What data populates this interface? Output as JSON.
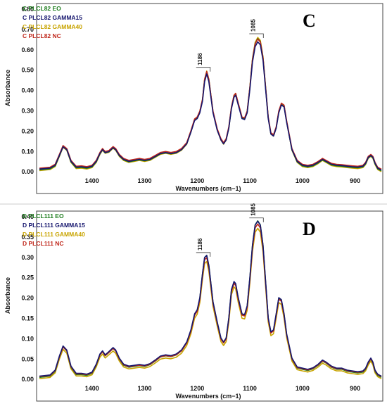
{
  "chart_data": [
    {
      "type": "line",
      "panel_letter": "C",
      "xlabel": "Wavenumbers (cm−1)",
      "ylabel": "Absorbance",
      "xlim": [
        1500,
        850
      ],
      "ylim": [
        -0.02,
        0.8
      ],
      "x_reversed": true,
      "grid": false,
      "legend_position": "top-left",
      "x_ticks": [
        1400,
        1300,
        1200,
        1100,
        1000,
        900
      ],
      "y_ticks": [
        0.0,
        0.1,
        0.2,
        0.3,
        0.4,
        0.5,
        0.6,
        0.7,
        0.8
      ],
      "x_tick_labels": [
        "1400",
        "1300",
        "1200",
        "1100",
        "1000",
        "900"
      ],
      "y_tick_labels": [
        "0.00",
        "0.10",
        "0.20",
        "0.30",
        "0.40",
        "0.50",
        "0.60",
        "0.70",
        "0.80"
      ],
      "annotations": [
        {
          "text": "1186",
          "x": 1186,
          "y": 0.5
        },
        {
          "text": "1085",
          "x": 1085,
          "y": 0.665
        }
      ],
      "series": [
        {
          "name": "C PLCL82 EO",
          "color": "#1e7d1e",
          "scale": 0.985,
          "baseline": 0.0
        },
        {
          "name": "C PLCL82 GAMMA15",
          "color": "#16166e",
          "scale": 0.955,
          "baseline": 0.004
        },
        {
          "name": "C PLCL82 GAMMA40",
          "color": "#c8a400",
          "scale": 1.0,
          "baseline": -0.004
        },
        {
          "name": "C PLCL82 NC",
          "color": "#c0281c",
          "scale": 0.97,
          "baseline": 0.008
        }
      ],
      "points": {
        "x": [
          1500,
          1480,
          1470,
          1462,
          1455,
          1448,
          1440,
          1430,
          1420,
          1410,
          1400,
          1392,
          1385,
          1380,
          1375,
          1368,
          1360,
          1355,
          1348,
          1340,
          1330,
          1320,
          1310,
          1300,
          1290,
          1280,
          1270,
          1260,
          1250,
          1240,
          1230,
          1220,
          1212,
          1205,
          1200,
          1195,
          1190,
          1186,
          1182,
          1178,
          1170,
          1162,
          1155,
          1150,
          1145,
          1140,
          1135,
          1130,
          1127,
          1122,
          1115,
          1110,
          1105,
          1100,
          1095,
          1090,
          1085,
          1080,
          1075,
          1070,
          1065,
          1060,
          1055,
          1050,
          1045,
          1040,
          1035,
          1030,
          1020,
          1010,
          1000,
          990,
          980,
          970,
          962,
          955,
          945,
          935,
          925,
          915,
          905,
          895,
          885,
          880,
          875,
          870,
          866,
          862,
          857,
          850
        ],
        "y": [
          0.01,
          0.015,
          0.03,
          0.08,
          0.125,
          0.11,
          0.05,
          0.02,
          0.022,
          0.018,
          0.025,
          0.05,
          0.09,
          0.11,
          0.095,
          0.1,
          0.12,
          0.11,
          0.08,
          0.06,
          0.05,
          0.055,
          0.06,
          0.055,
          0.06,
          0.075,
          0.09,
          0.095,
          0.09,
          0.095,
          0.11,
          0.14,
          0.2,
          0.26,
          0.27,
          0.3,
          0.36,
          0.46,
          0.5,
          0.46,
          0.3,
          0.21,
          0.16,
          0.14,
          0.16,
          0.22,
          0.32,
          0.38,
          0.39,
          0.34,
          0.27,
          0.265,
          0.3,
          0.42,
          0.56,
          0.64,
          0.665,
          0.65,
          0.57,
          0.42,
          0.27,
          0.19,
          0.18,
          0.22,
          0.3,
          0.34,
          0.33,
          0.25,
          0.11,
          0.05,
          0.03,
          0.025,
          0.03,
          0.045,
          0.06,
          0.05,
          0.035,
          0.03,
          0.028,
          0.025,
          0.022,
          0.02,
          0.025,
          0.04,
          0.07,
          0.08,
          0.07,
          0.04,
          0.015,
          0.005
        ]
      }
    },
    {
      "type": "line",
      "panel_letter": "D",
      "xlabel": "Wavenumbers (cm−1)",
      "ylabel": "Absorbance",
      "xlim": [
        1500,
        850
      ],
      "ylim": [
        -0.01,
        0.4
      ],
      "x_reversed": true,
      "grid": false,
      "legend_position": "top-left",
      "x_ticks": [
        1400,
        1300,
        1200,
        1100,
        1000,
        900
      ],
      "y_ticks": [
        0.0,
        0.05,
        0.1,
        0.15,
        0.2,
        0.25,
        0.3,
        0.35,
        0.4
      ],
      "x_tick_labels": [
        "1400",
        "1300",
        "1200",
        "1100",
        "1000",
        "900"
      ],
      "y_tick_labels": [
        "0.00",
        "0.05",
        "0.10",
        "0.15",
        "0.20",
        "0.25",
        "0.30",
        "0.35",
        "0.40"
      ],
      "annotations": [
        {
          "text": "1186",
          "x": 1186,
          "y": 0.305
        },
        {
          "text": "1085",
          "x": 1085,
          "y": 0.39
        }
      ],
      "series": [
        {
          "name": "D PLCL111 EO",
          "color": "#1e7d1e",
          "scale": 1.0,
          "baseline": 0.0
        },
        {
          "name": "D PLCL111 GAMMA15",
          "color": "#16166e",
          "scale": 0.99,
          "baseline": 0.003
        },
        {
          "name": "D PLCL111 GAMMA40",
          "color": "#c8a400",
          "scale": 0.96,
          "baseline": -0.003
        },
        {
          "name": "D PLCL111 NC",
          "color": "#c0281c",
          "scale": 0.975,
          "baseline": 0.002
        }
      ],
      "points": {
        "x": [
          1500,
          1480,
          1470,
          1462,
          1455,
          1448,
          1440,
          1430,
          1420,
          1410,
          1400,
          1392,
          1385,
          1380,
          1375,
          1368,
          1360,
          1355,
          1348,
          1340,
          1330,
          1320,
          1310,
          1300,
          1290,
          1280,
          1270,
          1260,
          1250,
          1240,
          1230,
          1220,
          1212,
          1205,
          1200,
          1195,
          1190,
          1186,
          1182,
          1178,
          1170,
          1162,
          1155,
          1150,
          1145,
          1140,
          1135,
          1130,
          1127,
          1122,
          1115,
          1110,
          1105,
          1100,
          1095,
          1090,
          1085,
          1080,
          1075,
          1070,
          1065,
          1060,
          1055,
          1050,
          1045,
          1040,
          1035,
          1030,
          1020,
          1010,
          1000,
          990,
          980,
          970,
          962,
          955,
          945,
          935,
          925,
          915,
          905,
          895,
          885,
          880,
          875,
          870,
          866,
          862,
          857,
          850
        ],
        "y": [
          0.005,
          0.008,
          0.02,
          0.055,
          0.08,
          0.07,
          0.03,
          0.012,
          0.012,
          0.01,
          0.015,
          0.035,
          0.06,
          0.068,
          0.058,
          0.066,
          0.076,
          0.07,
          0.05,
          0.035,
          0.03,
          0.032,
          0.034,
          0.032,
          0.036,
          0.045,
          0.055,
          0.058,
          0.056,
          0.06,
          0.07,
          0.09,
          0.12,
          0.16,
          0.17,
          0.2,
          0.26,
          0.3,
          0.305,
          0.28,
          0.19,
          0.14,
          0.1,
          0.09,
          0.1,
          0.15,
          0.22,
          0.24,
          0.235,
          0.2,
          0.16,
          0.158,
          0.18,
          0.25,
          0.33,
          0.38,
          0.39,
          0.38,
          0.33,
          0.24,
          0.15,
          0.115,
          0.12,
          0.16,
          0.2,
          0.195,
          0.16,
          0.11,
          0.05,
          0.028,
          0.025,
          0.022,
          0.026,
          0.035,
          0.045,
          0.04,
          0.03,
          0.025,
          0.025,
          0.02,
          0.018,
          0.016,
          0.018,
          0.025,
          0.04,
          0.05,
          0.04,
          0.02,
          0.01,
          0.005
        ]
      }
    }
  ]
}
